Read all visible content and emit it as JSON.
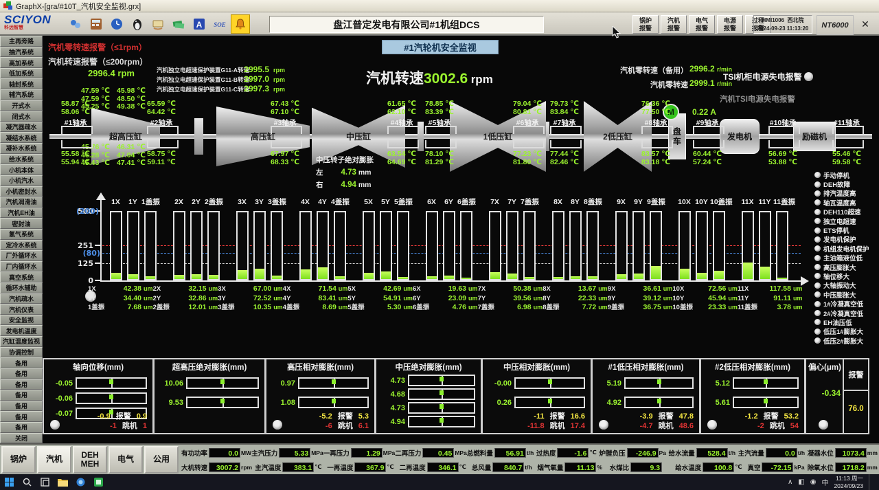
{
  "titlebar": {
    "title": "GraphX-[gra/#10T_汽机安全监视.grx]"
  },
  "toolbar": {
    "logo": "SCIYON",
    "logo_sub": "科远智慧",
    "title": "盘江普定发电有限公司#1机组DCS",
    "icons": [
      "contacts-icon",
      "calculator-icon",
      "globe-clock-icon",
      "penguin-icon",
      "card-icon",
      "banknotes-icon",
      "font-icon",
      "soe-icon",
      "alarm-bell-icon"
    ],
    "alarm_buttons": [
      "锅炉报警",
      "汽机报警",
      "电气报警",
      "电源报警",
      "过程报警"
    ],
    "hmi": {
      "name": "HMI1006",
      "org": "西北院",
      "date": "2024-09-23",
      "time": "11:13:20"
    },
    "system": "NT6000",
    "close_label": "✕"
  },
  "sidebar": {
    "items": [
      "主再旁路",
      "抽汽系统",
      "高加系统",
      "低加系统",
      "轴封系统",
      "辅汽系统",
      "开式水",
      "闭式水",
      "凝汽器疏水",
      "凝结水系统",
      "凝补水系统",
      "给水系统",
      "小机本体",
      "小机汽水",
      "小机密封水",
      "汽机润滑油",
      "汽机EH油",
      "密封油",
      "氢气系统",
      "定冷水系统",
      "厂外循环水",
      "厂内循环水",
      "真空系统",
      "循环水辅助",
      "汽机疏水",
      "汽机仪表",
      "安全监视",
      "发电机温度",
      "汽缸温度监视",
      "协调控制",
      "备用",
      "备用",
      "备用",
      "备用",
      "备用",
      "备用",
      "备用",
      "关闭"
    ]
  },
  "header": {
    "banner": "#1汽轮机安全监视",
    "alarm1": "汽机零转速报警（≤1rpm）",
    "alarm2": "汽机转速报警（≤200rpm）",
    "speed_small_value": "2996.4",
    "speed_small_unit": "rpm",
    "g11": [
      {
        "label": "汽机独立电超速保护装置G11-A转速",
        "value": "2995.5",
        "unit": "rpm"
      },
      {
        "label": "汽机独立电超速保护装置G11-B转速",
        "value": "2997.0",
        "unit": "rpm"
      },
      {
        "label": "汽机独立电超速保护装置G11-C转速",
        "value": "2997.3",
        "unit": "rpm"
      }
    ],
    "main_speed_label": "汽机转速",
    "main_speed_value": "3002.6",
    "main_speed_unit": "rpm",
    "zero_standby_label": "汽机零转速（备用）",
    "zero_standby_value": "2996.2",
    "zero_standby_unit": "r/min",
    "zero_label": "汽机零转速",
    "zero_value": "2999.1",
    "zero_unit": "r/min",
    "tsi_cabinet_label": "TSI机柜电源失电报警",
    "tsi_power_label": "汽机TSI电源失电报警"
  },
  "turbine": {
    "unit": "℃",
    "cylinders": [
      "超高压缸",
      "高压缸",
      "中压缸",
      "1低压缸",
      "2低压缸",
      "发电机",
      "励磁机"
    ],
    "turning_gear": {
      "label": "盘车",
      "motor": "M",
      "current": "0.22 A"
    },
    "bearings": [
      {
        "name": "#1轴承",
        "top": [
          "58.87",
          "58.06"
        ],
        "bottom": [
          "55.58",
          "55.94"
        ]
      },
      {
        "name": "#2轴承",
        "top": [
          "65.59",
          "64.42"
        ],
        "bottom": [
          "58.75",
          "59.11"
        ]
      },
      {
        "name": "#3轴承",
        "top": [
          "67.43",
          "67.10"
        ],
        "bottom": [
          "67.97",
          "68.33"
        ]
      },
      {
        "name": "#4轴承",
        "top": [
          "61.65",
          "62.10"
        ],
        "bottom": [
          "63.54",
          "64.69"
        ]
      },
      {
        "name": "#5轴承",
        "top": [
          "78.85",
          "83.39"
        ],
        "bottom": [
          "78.10",
          "81.29"
        ]
      },
      {
        "name": "#6轴承",
        "top": [
          "79.04",
          "80.81"
        ],
        "bottom": [
          "77.23",
          "81.80"
        ]
      },
      {
        "name": "#7轴承",
        "top": [
          "79.73",
          "83.84"
        ],
        "bottom": [
          "77.44",
          "82.46"
        ]
      },
      {
        "name": "#8轴承",
        "top": [
          "76.36",
          "77.50"
        ],
        "bottom": [
          "83.57",
          "83.18"
        ]
      },
      {
        "name": "#9轴承",
        "top": [],
        "bottom": [
          "60.44",
          "57.24"
        ]
      },
      {
        "name": "#10轴承",
        "top": [],
        "bottom": [
          "56.69",
          "53.88"
        ]
      },
      {
        "name": "#11轴承",
        "top": [],
        "bottom": [
          "55.46",
          "59.58"
        ]
      }
    ],
    "uhp_top": [
      [
        "47.59",
        "47.59",
        "45.25"
      ],
      [
        "45.98",
        "48.50",
        "49.38"
      ]
    ],
    "uhp_bottom": [
      [
        "45.76",
        "46.28",
        "45.43"
      ],
      [
        "46.31",
        "47.04",
        "47.41"
      ]
    ],
    "ip_expansion": {
      "title": "中压转子绝对膨胀",
      "rows": [
        {
          "label": "左",
          "value": "4.73",
          "unit": "mm"
        },
        {
          "label": "右",
          "value": "4.94",
          "unit": "mm"
        }
      ]
    }
  },
  "chart_data": {
    "type": "bar",
    "unit": "um",
    "y_ticks_primary": [
      0,
      125,
      251,
      500
    ],
    "y_ticks_secondary": [
      80,
      200
    ],
    "axis_max_primary": 500,
    "axis_max_secondary": 200,
    "alarm_line_primary": 251,
    "alarm_line_secondary": 80,
    "ref_line": 125,
    "groups": [
      {
        "labels": [
          "1X",
          "1Y",
          "1盖振"
        ],
        "values": [
          42.38,
          34.4,
          7.68
        ]
      },
      {
        "labels": [
          "2X",
          "2Y",
          "2盖振"
        ],
        "values": [
          32.15,
          32.86,
          12.01
        ]
      },
      {
        "labels": [
          "3X",
          "3Y",
          "3盖振"
        ],
        "values": [
          67.0,
          72.52,
          10.35
        ]
      },
      {
        "labels": [
          "4X",
          "4Y",
          "4盖振"
        ],
        "values": [
          71.54,
          83.41,
          8.69
        ]
      },
      {
        "labels": [
          "5X",
          "5Y",
          "5盖振"
        ],
        "values": [
          42.69,
          54.91,
          5.3
        ]
      },
      {
        "labels": [
          "6X",
          "6Y",
          "6盖振"
        ],
        "values": [
          19.63,
          23.09,
          4.76
        ]
      },
      {
        "labels": [
          "7X",
          "7Y",
          "7盖振"
        ],
        "values": [
          50.38,
          39.56,
          6.98
        ]
      },
      {
        "labels": [
          "8X",
          "8Y",
          "8盖振"
        ],
        "values": [
          13.67,
          22.33,
          7.72
        ]
      },
      {
        "labels": [
          "9X",
          "9Y",
          "9盖振"
        ],
        "values": [
          36.61,
          39.12,
          36.75
        ]
      },
      {
        "labels": [
          "10X",
          "10Y",
          "10盖振"
        ],
        "values": [
          72.56,
          45.94,
          23.33
        ]
      },
      {
        "labels": [
          "11X",
          "11Y",
          "11盖振"
        ],
        "values": [
          117.58,
          91.11,
          3.78
        ]
      }
    ]
  },
  "checklist": {
    "items": [
      "手动停机",
      "DEH故障",
      "排汽温度高",
      "轴瓦温度高",
      "DEH110超速",
      "独立电超速",
      "ETS停机",
      "发电机保护",
      "机组发电机保护",
      "主油箱液位低",
      "高压膨胀大",
      "轴位移大",
      "大轴振动大",
      "中压膨胀大",
      "1#冷凝真空低",
      "2#冷凝真空低",
      "EH油压低",
      "低压1#膨胀大",
      "低压2#膨胀大"
    ]
  },
  "panels": {
    "list": [
      {
        "title": "轴向位移(mm)",
        "values": [
          "-0.05",
          "-0.06",
          "-0.07"
        ],
        "alarm": {
          "low": "-0.9",
          "label": "报警",
          "high": "0.9"
        },
        "trip": {
          "low": "-1",
          "label": "跳机",
          "high": "1"
        },
        "indicator": true
      },
      {
        "title": "超高压绝对膨胀(mm)",
        "values": [
          "10.06",
          "9.53"
        ],
        "indicator": false
      },
      {
        "title": "高压相对膨胀(mm)",
        "values": [
          "0.97",
          "1.08"
        ],
        "alarm": {
          "low": "-5.2",
          "label": "报警",
          "high": "5.3"
        },
        "trip": {
          "low": "-6",
          "label": "跳机",
          "high": "6.1"
        },
        "indicator": true
      },
      {
        "title": "中压绝对膨胀(mm)",
        "values": [
          "4.73",
          "4.68",
          "4.73",
          "4.94"
        ],
        "indicator": false
      },
      {
        "title": "中压相对膨胀(mm)",
        "values": [
          "-0.00",
          "0.26"
        ],
        "alarm": {
          "low": "-11",
          "label": "报警",
          "high": "16.6"
        },
        "trip": {
          "low": "-11.8",
          "label": "跳机",
          "high": "17.4"
        },
        "indicator": false
      },
      {
        "title": "#1低压相对膨胀(mm)",
        "values": [
          "5.19",
          "4.92"
        ],
        "alarm": {
          "low": "-3.9",
          "label": "报警",
          "high": "47.8"
        },
        "trip": {
          "low": "-4.7",
          "label": "跳机",
          "high": "48.6"
        },
        "indicator": true
      },
      {
        "title": "#2低压相对膨胀(mm)",
        "values": [
          "5.12",
          "5.61"
        ],
        "alarm": {
          "low": "-1.2",
          "label": "报警",
          "high": "53.2"
        },
        "trip": {
          "low": "-2",
          "label": "跳机",
          "high": "54"
        },
        "indicator": true
      }
    ],
    "eccentricity": {
      "title": "偏心(μm)",
      "value": "-0.34",
      "alarm_label": "报警",
      "alarm_value": "76.0",
      "indicator": true
    }
  },
  "bottom": {
    "buttons": [
      "锅炉",
      "汽机",
      "DEH MEH",
      "电气",
      "公用"
    ],
    "row1": [
      {
        "label": "有功功率",
        "value": "0.0",
        "unit": "MW"
      },
      {
        "label": "主汽压力",
        "value": "5.33",
        "unit": "MPa"
      },
      {
        "label": "一再压力",
        "value": "1.29",
        "unit": "MPa"
      },
      {
        "label": "二再压力",
        "value": "0.45",
        "unit": "MPa"
      },
      {
        "label": "总燃料量",
        "value": "56.91",
        "unit": "t/h"
      },
      {
        "label": "过热度",
        "value": "-1.6",
        "unit": "℃"
      },
      {
        "label": "炉膛负压",
        "value": "-246.9",
        "unit": "Pa"
      },
      {
        "label": "给水流量",
        "value": "528.4",
        "unit": "t/h"
      },
      {
        "label": "主汽流量",
        "value": "0.0",
        "unit": "t/h"
      },
      {
        "label": "凝器水位",
        "value": "1073.4",
        "unit": "mm"
      }
    ],
    "row2": [
      {
        "label": "大机转速",
        "value": "3007.2",
        "unit": "rpm"
      },
      {
        "label": "主汽温度",
        "value": "383.1",
        "unit": "℃"
      },
      {
        "label": "一再温度",
        "value": "367.9",
        "unit": "℃"
      },
      {
        "label": "二再温度",
        "value": "346.1",
        "unit": "℃"
      },
      {
        "label": "总风量",
        "value": "840.7",
        "unit": "t/h"
      },
      {
        "label": "烟气氧量",
        "value": "11.13",
        "unit": "%"
      },
      {
        "label": "水煤比",
        "value": "9.3",
        "unit": ""
      },
      {
        "label": "给水温度",
        "value": "100.8",
        "unit": "℃"
      },
      {
        "label": "真空",
        "value": "-72.15",
        "unit": "kPa"
      },
      {
        "label": "除氧水位",
        "value": "1718.2",
        "unit": "mm"
      }
    ]
  },
  "taskbar": {
    "time": "11:13",
    "weekday": "周一",
    "date": "2024/09/23"
  }
}
